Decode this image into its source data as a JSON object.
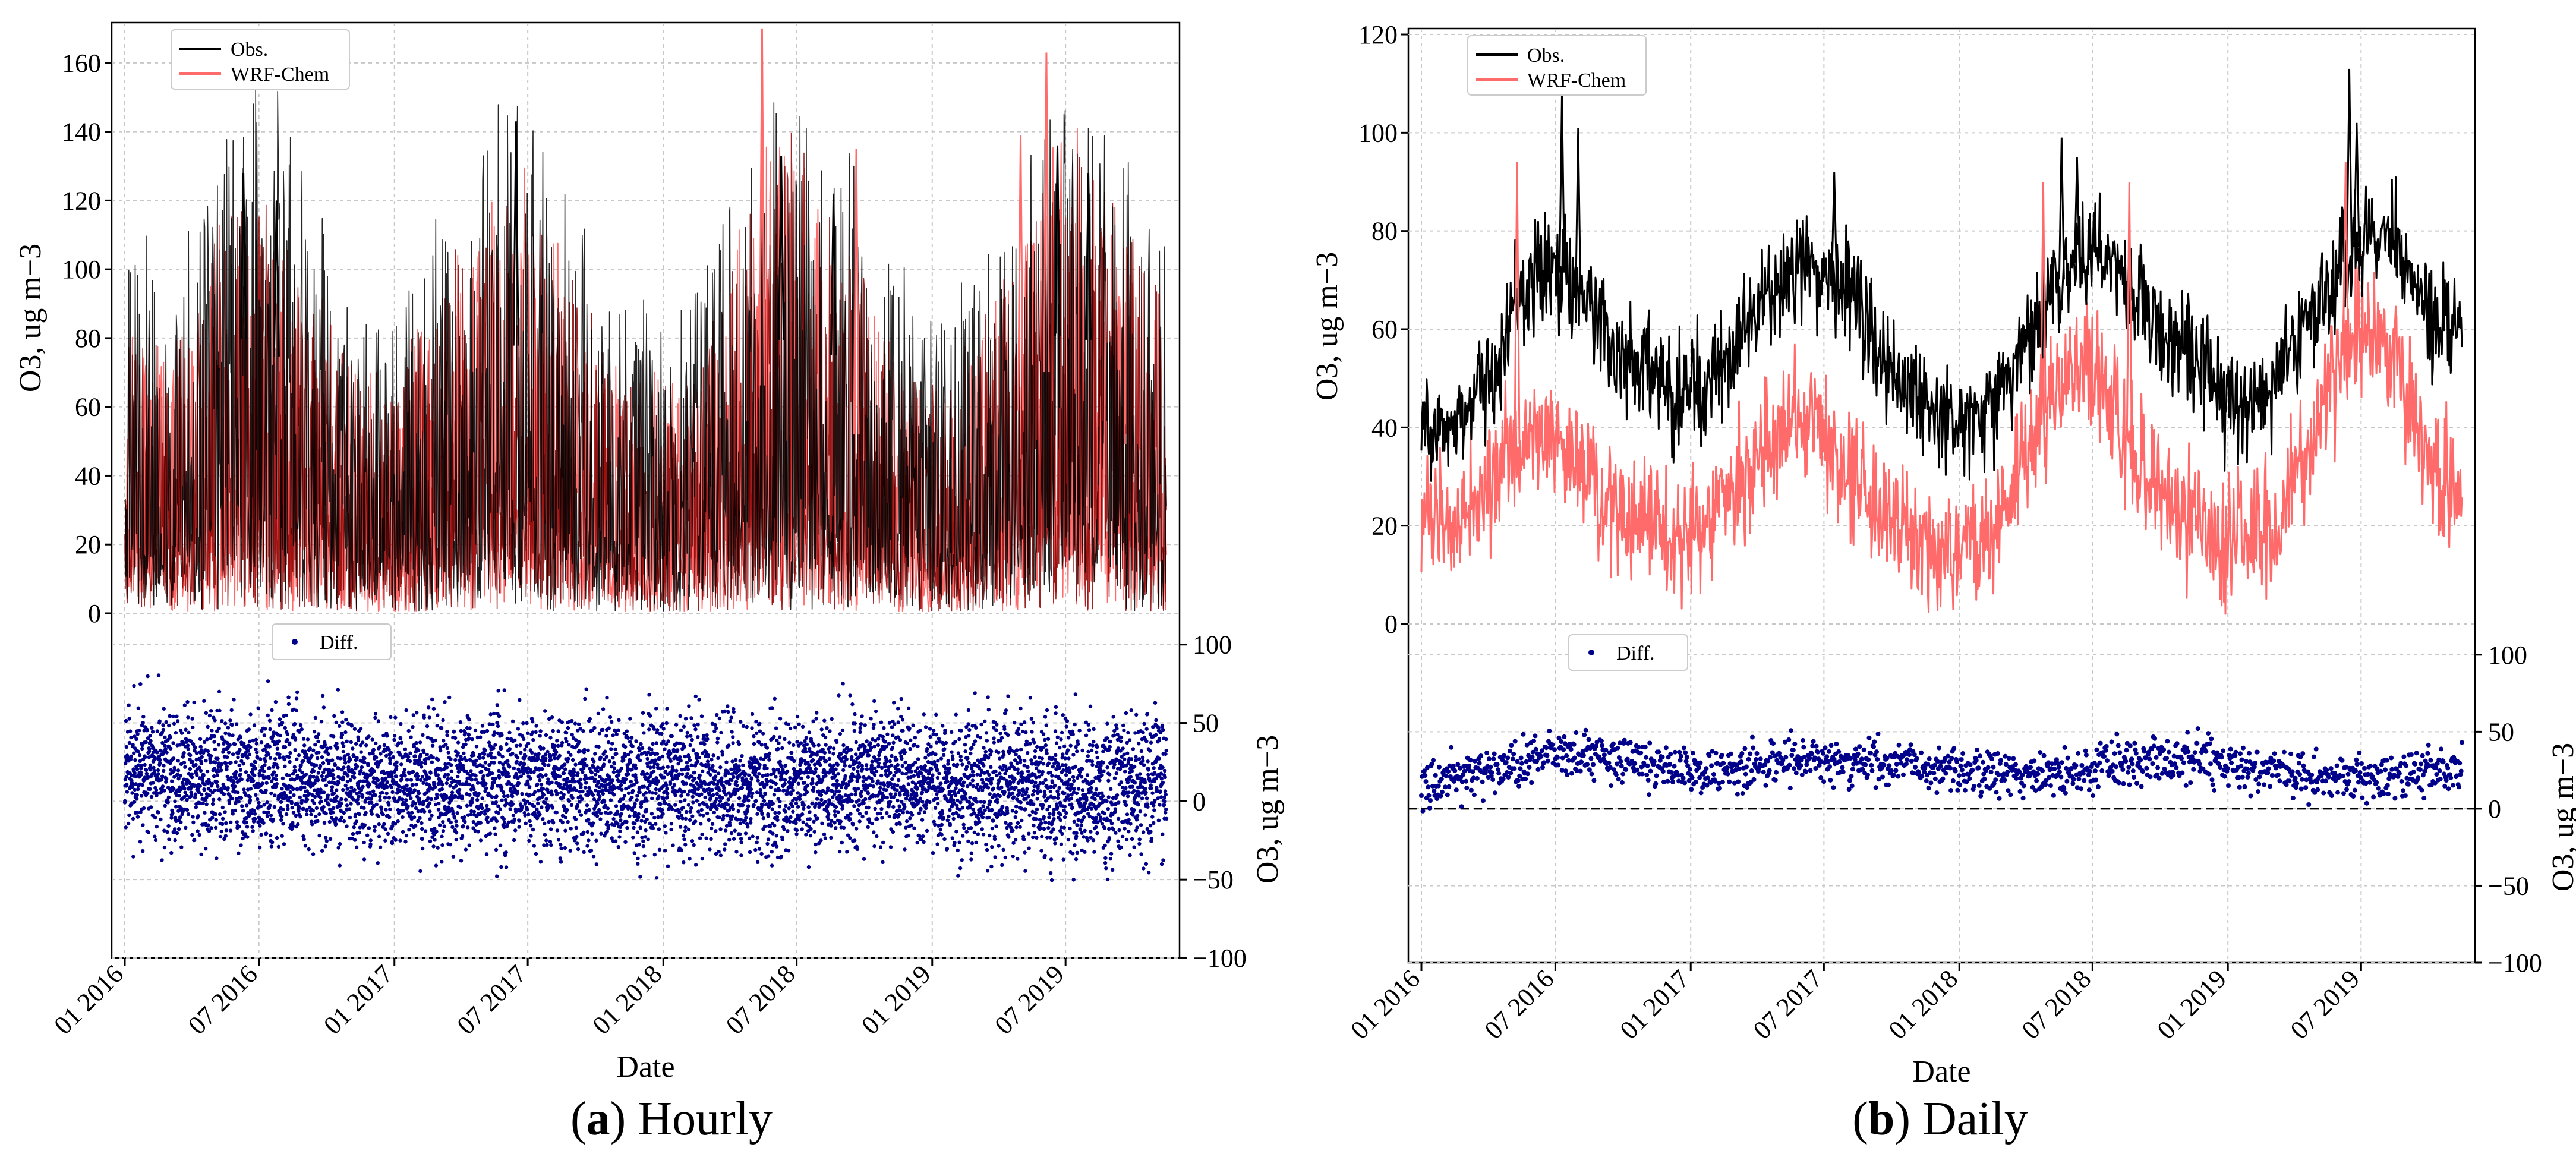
{
  "figure": {
    "caption_a": {
      "letter": "a",
      "text": "Hourly"
    },
    "caption_b": {
      "letter": "b",
      "text": "Daily"
    },
    "colors": {
      "obs": "#000000",
      "model": "#ff6b6b",
      "model_dark": "#8b0000",
      "diff": "#00008b",
      "grid": "#c8c8c8"
    }
  },
  "chart_data": [
    {
      "type": "line",
      "panel": "a",
      "xlabel": "Date",
      "x_ticks": [
        "01 2016",
        "07 2016",
        "01 2017",
        "07 2017",
        "01 2018",
        "07 2018",
        "01 2019",
        "07 2019"
      ],
      "xlim": [
        "2016-01-01",
        "2019-11-15"
      ],
      "top": {
        "ylabel": "O3, ug m−3",
        "ylim": [
          0,
          170
        ],
        "y_ticks": [
          0,
          20,
          40,
          60,
          80,
          100,
          120,
          140,
          160
        ],
        "legend": [
          "Obs.",
          "WRF-Chem"
        ],
        "legend_position": "top-left",
        "series": [
          {
            "name": "Obs.",
            "seasonal": [
              58,
              56,
              56,
              60,
              70,
              80,
              78,
              72,
              62,
              55,
              50,
              46,
              50,
              56,
              64,
              70,
              76,
              78,
              74,
              66,
              58,
              52,
              48,
              44,
              46,
              52,
              62,
              70,
              78,
              82,
              80,
              72,
              62,
              56,
              50,
              46,
              48,
              54,
              62,
              72,
              80,
              82,
              78,
              70,
              64,
              60
            ],
            "peaks": [
              [
                "2016-06-10",
                128
              ],
              [
                "2016-07-25",
                120
              ],
              [
                "2017-06-15",
                143
              ],
              [
                "2018-06-10",
                133
              ],
              [
                "2018-08-20",
                122
              ],
              [
                "2019-06-20",
                136
              ],
              [
                "2019-08-01",
                128
              ]
            ]
          },
          {
            "name": "WRF-Chem",
            "seasonal": [
              44,
              40,
              40,
              46,
              56,
              64,
              62,
              56,
              48,
              42,
              38,
              34,
              38,
              44,
              52,
              58,
              64,
              66,
              62,
              54,
              46,
              40,
              36,
              32,
              34,
              40,
              52,
              62,
              70,
              72,
              68,
              58,
              48,
              42,
              36,
              34,
              36,
              42,
              52,
              62,
              72,
              74,
              70,
              60,
              52,
              48
            ],
            "peaks": [
              [
                "2018-05-15",
                170
              ],
              [
                "2018-09-20",
                135
              ],
              [
                "2019-06-05",
                163
              ],
              [
                "2019-05-01",
                139
              ]
            ]
          }
        ]
      },
      "bottom": {
        "ylabel": "O3, ug m−3",
        "ylim": [
          -100,
          120
        ],
        "y_ticks": [
          -100,
          -50,
          0,
          50,
          100
        ],
        "legend": [
          "Diff."
        ],
        "legend_position": "top-left",
        "series": [
          {
            "name": "Diff.",
            "seasonal": [
              14,
              16,
              16,
              14,
              14,
              16,
              16,
              16,
              14,
              13,
              12,
              12,
              12,
              12,
              12,
              12,
              12,
              12,
              12,
              12,
              12,
              12,
              12,
              12,
              12,
              12,
              10,
              8,
              8,
              10,
              12,
              14,
              14,
              14,
              14,
              12,
              12,
              12,
              10,
              10,
              8,
              8,
              8,
              10,
              12,
              12
            ],
            "spread": 30
          }
        ]
      }
    },
    {
      "type": "line",
      "panel": "b",
      "xlabel": "Date",
      "x_ticks": [
        "01 2016",
        "07 2016",
        "01 2017",
        "07 2017",
        "01 2018",
        "07 2018",
        "01 2019",
        "07 2019"
      ],
      "xlim": [
        "2016-01-01",
        "2019-11-15"
      ],
      "top": {
        "ylabel": "O3, ug m−3",
        "ylim": [
          0,
          120
        ],
        "y_ticks": [
          0,
          20,
          40,
          60,
          80,
          100,
          120
        ],
        "legend": [
          "Obs.",
          "WRF-Chem"
        ],
        "legend_position": "top-left",
        "series": [
          {
            "name": "Obs.",
            "seasonal": [
              40,
              40,
              42,
              52,
              62,
              72,
              72,
              66,
              58,
              54,
              50,
              46,
              48,
              52,
              60,
              66,
              72,
              74,
              70,
              62,
              54,
              48,
              44,
              40,
              42,
              48,
              58,
              66,
              72,
              76,
              74,
              68,
              60,
              56,
              52,
              46,
              46,
              50,
              58,
              66,
              74,
              80,
              76,
              68,
              62,
              60
            ],
            "peaks": [
              [
                "2016-07-10",
                108
              ],
              [
                "2016-08-01",
                101
              ],
              [
                "2017-07-15",
                92
              ],
              [
                "2018-05-20",
                99
              ],
              [
                "2018-06-10",
                95
              ],
              [
                "2019-06-15",
                113
              ],
              [
                "2019-06-25",
                102
              ]
            ]
          },
          {
            "name": "WRF-Chem",
            "seasonal": [
              24,
              20,
              22,
              30,
              36,
              40,
              36,
              30,
              24,
              22,
              20,
              18,
              20,
              24,
              30,
              36,
              42,
              42,
              36,
              28,
              22,
              18,
              16,
              14,
              16,
              22,
              34,
              44,
              52,
              52,
              44,
              34,
              26,
              22,
              18,
              16,
              18,
              22,
              32,
              44,
              58,
              62,
              54,
              40,
              30,
              28
            ],
            "peaks": [
              [
                "2016-05-10",
                94
              ],
              [
                "2018-04-25",
                90
              ],
              [
                "2018-08-20",
                90
              ],
              [
                "2019-06-10",
                94
              ]
            ]
          }
        ]
      },
      "bottom": {
        "ylabel": "O3, ug m−3",
        "ylim": [
          -100,
          120
        ],
        "y_ticks": [
          -100,
          -50,
          0,
          50,
          100
        ],
        "legend": [
          "Diff."
        ],
        "legend_position": "top-left",
        "dashed_zero_line": true,
        "series": [
          {
            "name": "Diff.",
            "seasonal": [
              16,
              20,
              24,
              24,
              28,
              34,
              38,
              36,
              32,
              30,
              28,
              26,
              26,
              26,
              28,
              30,
              30,
              30,
              32,
              32,
              30,
              28,
              26,
              24,
              24,
              24,
              22,
              22,
              22,
              26,
              30,
              32,
              32,
              32,
              32,
              30,
              26,
              24,
              22,
              22,
              20,
              20,
              20,
              22,
              24,
              26
            ],
            "spread": 14
          }
        ]
      }
    }
  ]
}
